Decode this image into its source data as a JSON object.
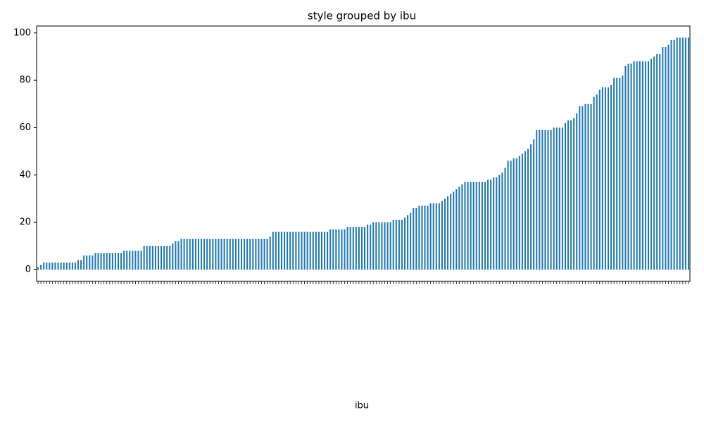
{
  "chart_data": {
    "type": "bar",
    "title": "style grouped by ibu",
    "xlabel": "ibu",
    "color": "#1f77b4",
    "ylim": [
      -4.9,
      102.9
    ],
    "yticks": [
      0,
      20,
      40,
      60,
      80,
      100
    ],
    "categories": [
      null,
      null,
      null,
      null,
      null,
      null,
      null,
      null,
      null,
      null,
      null,
      null,
      null,
      null,
      null,
      null,
      null,
      null,
      null,
      null,
      null,
      null,
      null,
      null,
      null,
      null,
      null,
      null,
      null,
      null,
      null,
      null,
      null,
      null,
      null,
      null,
      null,
      null,
      null,
      null,
      null,
      null,
      null,
      null,
      null,
      null,
      null,
      null,
      null,
      null,
      null,
      null,
      null,
      null,
      null,
      null,
      null,
      null,
      null,
      null,
      null,
      null,
      null,
      null,
      null,
      null,
      null,
      null,
      null,
      null,
      null,
      null,
      null,
      null,
      null,
      null,
      null,
      null,
      null,
      null,
      null,
      null,
      null,
      null,
      null,
      null,
      null,
      null,
      null,
      null,
      null,
      null,
      null,
      null,
      null,
      null,
      null,
      null,
      null,
      null,
      null,
      null,
      null,
      null,
      null,
      null,
      null,
      null,
      null,
      null,
      null,
      null,
      null,
      null,
      null,
      null,
      null,
      null,
      null,
      null,
      null,
      null,
      null,
      null,
      null,
      null,
      null,
      null,
      null,
      null,
      null,
      null,
      null,
      null,
      null,
      null,
      null,
      null,
      null,
      null,
      null,
      null,
      null,
      null,
      null,
      null,
      null,
      null,
      null,
      null,
      null,
      null,
      null,
      null,
      null,
      null,
      null,
      null,
      null,
      null,
      null,
      null,
      null,
      null,
      null,
      null,
      null,
      null,
      null,
      null,
      null,
      null,
      null,
      null,
      null,
      null,
      null,
      null,
      null,
      null,
      null,
      null,
      null,
      null,
      null,
      null,
      null,
      null,
      null,
      null,
      null,
      null,
      null,
      null,
      null,
      null,
      null,
      null,
      null,
      null,
      null,
      null,
      null,
      null,
      null,
      null,
      null,
      null,
      null,
      null,
      null,
      null,
      null,
      null,
      null,
      null,
      null,
      null,
      null,
      null,
      null,
      null,
      null,
      null,
      null,
      null,
      null,
      null
    ],
    "values": [
      1,
      2,
      3,
      3,
      3,
      3,
      3,
      3,
      3,
      3,
      3,
      3,
      3,
      3,
      4,
      4,
      6,
      6,
      6,
      6,
      7,
      7,
      7,
      7,
      7,
      7,
      7,
      7,
      7,
      7,
      8,
      8,
      8,
      8,
      8,
      8,
      8,
      10,
      10,
      10,
      10,
      10,
      10,
      10,
      10,
      10,
      10,
      11,
      12,
      12,
      13,
      13,
      13,
      13,
      13,
      13,
      13,
      13,
      13,
      13,
      13,
      13,
      13,
      13,
      13,
      13,
      13,
      13,
      13,
      13,
      13,
      13,
      13,
      13,
      13,
      13,
      13,
      13,
      13,
      13,
      13,
      14,
      16,
      16,
      16,
      16,
      16,
      16,
      16,
      16,
      16,
      16,
      16,
      16,
      16,
      16,
      16,
      16,
      16,
      16,
      16,
      16,
      17,
      17,
      17,
      17,
      17,
      17,
      18,
      18,
      18,
      18,
      18,
      18,
      18,
      19,
      19,
      20,
      20,
      20,
      20,
      20,
      20,
      20,
      21,
      21,
      21,
      21,
      22,
      23,
      24,
      26,
      26,
      27,
      27,
      27,
      27,
      28,
      28,
      28,
      28,
      29,
      30,
      31,
      32,
      33,
      34,
      35,
      36,
      37,
      37,
      37,
      37,
      37,
      37,
      37,
      37,
      38,
      38,
      39,
      39,
      40,
      41,
      43,
      46,
      46,
      47,
      47,
      48,
      49,
      50,
      51,
      53,
      55,
      59,
      59,
      59,
      59,
      59,
      59,
      60,
      60,
      60,
      60,
      62,
      63,
      63,
      64,
      66,
      69,
      69,
      70,
      70,
      70,
      73,
      74,
      76,
      77,
      77,
      77,
      78,
      81,
      81,
      81,
      82,
      86,
      87,
      87,
      88,
      88,
      88,
      88,
      88,
      88,
      89,
      90,
      91,
      91,
      94,
      94,
      95,
      97,
      97,
      98,
      98,
      98,
      98,
      98
    ]
  }
}
